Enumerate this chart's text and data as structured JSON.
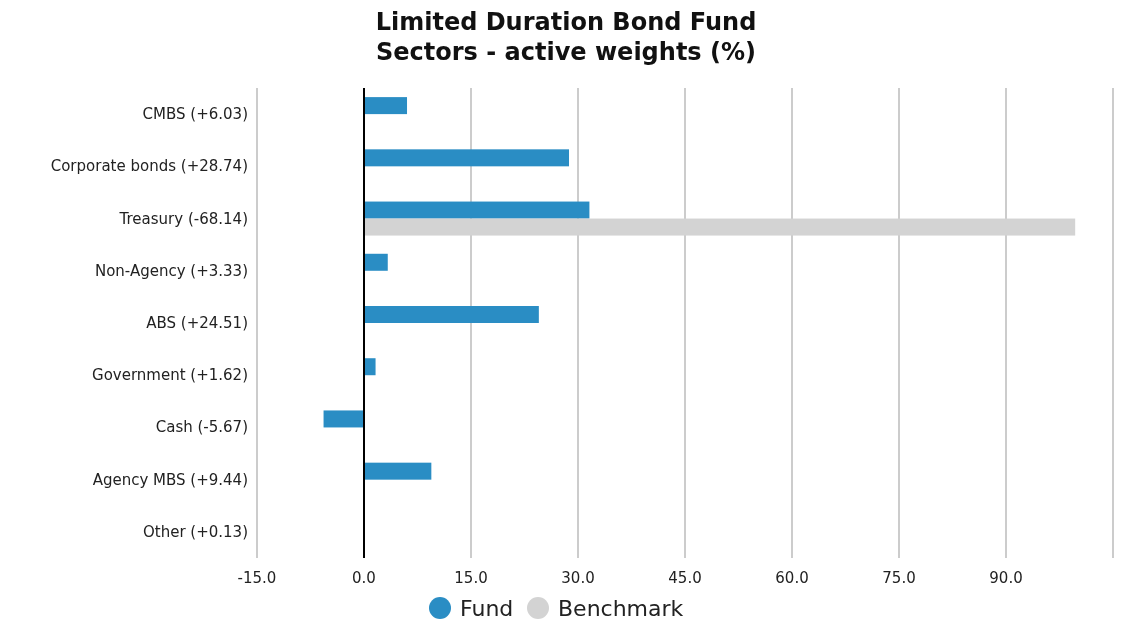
{
  "chart_data": {
    "type": "bar",
    "orientation": "horizontal",
    "title": "Limited Duration Bond Fund\nSectors - active weights (%)",
    "categories": [
      "CMBS (+6.03)",
      "Corporate bonds (+28.74)",
      "Treasury (-68.14)",
      "Non-Agency (+3.33)",
      "ABS (+24.51)",
      "Government (+1.62)",
      "Cash (-5.67)",
      "Agency MBS (+9.44)",
      "Other (+0.13)"
    ],
    "series": [
      {
        "name": "Fund",
        "color": "#2a8dc4",
        "values": [
          6.03,
          28.74,
          31.6,
          3.33,
          24.51,
          1.62,
          -5.67,
          9.44,
          null
        ]
      },
      {
        "name": "Benchmark",
        "color": "#d3d3d3",
        "values": [
          0,
          0,
          99.7,
          0,
          0,
          0,
          0,
          0,
          0
        ]
      }
    ],
    "xlim": [
      -15,
      105
    ],
    "xticks": [
      {
        "value": -15,
        "label": "-15.0"
      },
      {
        "value": 0,
        "label": "0.0"
      },
      {
        "value": 15,
        "label": "15.0"
      },
      {
        "value": 30,
        "label": "30.0"
      },
      {
        "value": 45,
        "label": "45.0"
      },
      {
        "value": 60,
        "label": "60.0"
      },
      {
        "value": 75,
        "label": "75.0"
      },
      {
        "value": 90,
        "label": "90.0"
      },
      {
        "value": 105,
        "label": null
      }
    ],
    "grid": "x",
    "legend": "bottom"
  }
}
